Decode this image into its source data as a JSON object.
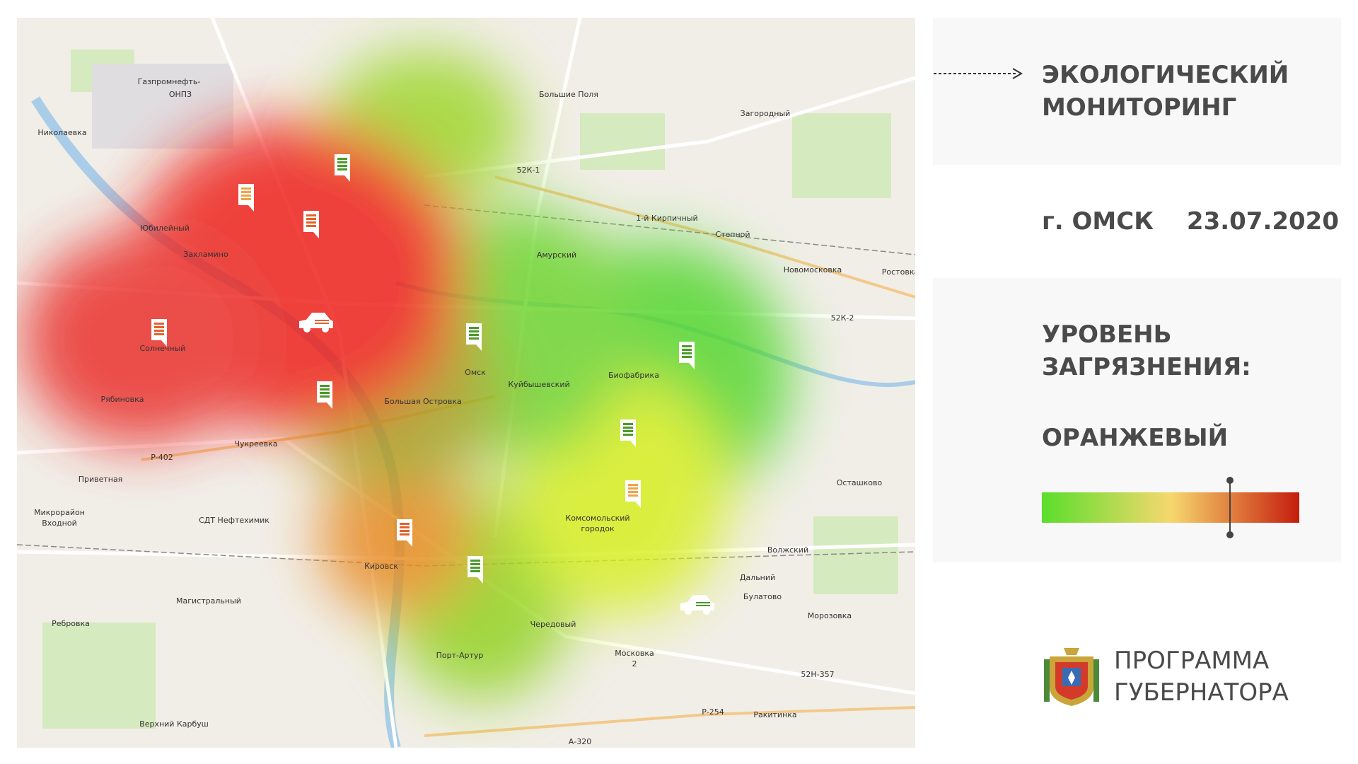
{
  "panel": {
    "title_lines": [
      "ЭКОЛОГИЧЕСКИЙ",
      "МОНИТОРИНГ"
    ],
    "city": "г. ОМСК",
    "date": "23.07.2020",
    "level_title_lines": [
      "УРОВЕНЬ",
      "ЗАГРЯЗНЕНИЯ:"
    ],
    "level_value": "ОРАНЖЕВЫЙ",
    "program_lines": [
      "ПРОГРАММА",
      "ГУБЕРНАТОРА"
    ]
  },
  "map": {
    "labels": [
      "Газпромнефть-",
      "ОНПЗ",
      "Николаевка",
      "Юбилейный",
      "Захламино",
      "Большие Поля",
      "Загородный",
      "52К-1",
      "1-й Кирпичный",
      "Степной",
      "Амурский",
      "Новомосковка",
      "Ростовка",
      "52К-2",
      "Солнечный",
      "Рябиновка",
      "Омск",
      "Куйбышевский",
      "Биофабрика",
      "Большая Островка",
      "Чукреевка",
      "Р-402",
      "Приветная",
      "Осташково",
      "Микрорайон",
      "Входной",
      "СДТ Нефтехимик",
      "Кировск",
      "Магистральный",
      "Ребровка",
      "Чередовый",
      "Дальний",
      "Булатово",
      "Волжский",
      "Морозовка",
      "Порт-Артур",
      "Московка",
      "2",
      "52Н-357",
      "Р-254",
      "Ракитинка",
      "Верхний Карбуш",
      "А-320",
      "Комсомольский",
      "городок"
    ]
  }
}
